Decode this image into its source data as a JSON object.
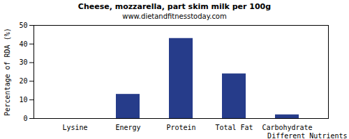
{
  "chart_data": {
    "type": "bar",
    "title": "Cheese, mozzarella, part skim milk per 100g",
    "subtitle": "www.dietandfitnesstoday.com",
    "x_label": "Different Nutrients",
    "y_label": "Percentage of RDA (%)",
    "categories": [
      "Lysine",
      "Energy",
      "Protein",
      "Total Fat",
      "Carbohydrate"
    ],
    "values": [
      0,
      13,
      43,
      24,
      2
    ],
    "color": "#263c8a",
    "ylim": [
      0,
      50
    ],
    "yticks": [
      0,
      10,
      20,
      30,
      40,
      50
    ],
    "grid": false
  }
}
